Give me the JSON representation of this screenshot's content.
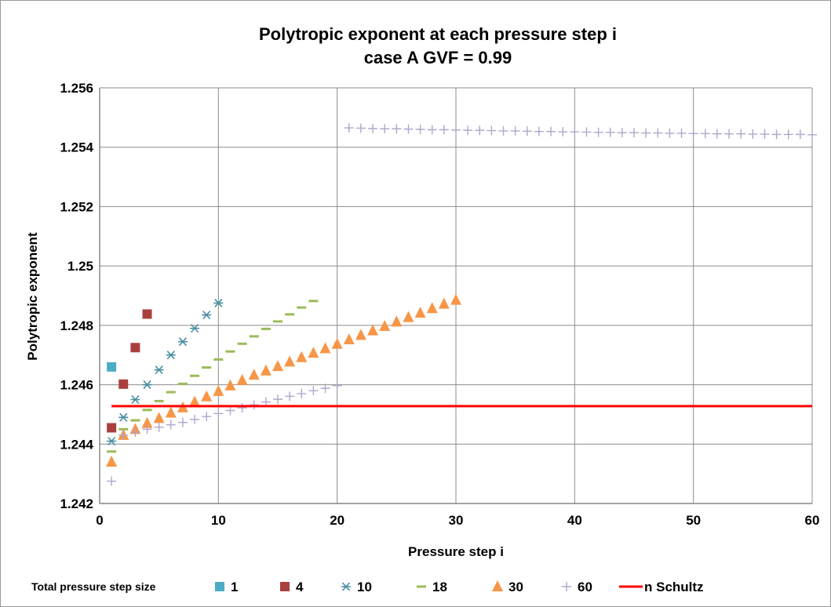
{
  "chart_data": {
    "type": "scatter",
    "title": "Polytropic exponent at each pressure step i",
    "subtitle": "case A GVF = 0.99",
    "xlabel": "Pressure step i",
    "ylabel": "Polytropic exponent",
    "xlim": [
      0,
      60
    ],
    "ylim": [
      1.242,
      1.256
    ],
    "x_ticks": [
      "0",
      "10",
      "20",
      "30",
      "40",
      "50",
      "60"
    ],
    "y_ticks": [
      "1.242",
      "1.244",
      "1.246",
      "1.248",
      "1.25",
      "1.252",
      "1.254",
      "1.256"
    ],
    "grid": true,
    "legend_title": "Total pressure step size",
    "legend_position": "bottom",
    "series": [
      {
        "name": "1",
        "marker": "square",
        "color": "#4bacc6",
        "x": [
          1
        ],
        "y": [
          1.2466
        ]
      },
      {
        "name": "4",
        "marker": "square",
        "color": "#a9403e",
        "x": [
          1,
          2,
          3,
          4
        ],
        "y": [
          1.24455,
          1.24602,
          1.24725,
          1.24838
        ]
      },
      {
        "name": "10",
        "marker": "asterisk",
        "color": "#4a8fa3",
        "x": [
          1,
          2,
          3,
          4,
          5,
          6,
          7,
          8,
          9,
          10
        ],
        "y": [
          1.2441,
          1.2449,
          1.2455,
          1.246,
          1.2465,
          1.247,
          1.24745,
          1.2479,
          1.24835,
          1.24875
        ]
      },
      {
        "name": "18",
        "marker": "dash",
        "color": "#9bbb59",
        "x": [
          1,
          2,
          3,
          4,
          5,
          6,
          7,
          8,
          9,
          10,
          11,
          12,
          13,
          14,
          15,
          16,
          17,
          18
        ],
        "y": [
          1.24375,
          1.2445,
          1.2448,
          1.24515,
          1.24545,
          1.24575,
          1.24603,
          1.2463,
          1.24658,
          1.24685,
          1.24712,
          1.24738,
          1.24763,
          1.24788,
          1.24813,
          1.24837,
          1.2486,
          1.24882
        ]
      },
      {
        "name": "30",
        "marker": "triangle",
        "color": "#f79646",
        "x": [
          1,
          2,
          3,
          4,
          5,
          6,
          7,
          8,
          9,
          10,
          11,
          12,
          13,
          14,
          15,
          16,
          17,
          18,
          19,
          20,
          21,
          22,
          23,
          24,
          25,
          26,
          27,
          28,
          29,
          30
        ],
        "y": [
          1.2434,
          1.2443,
          1.2445,
          1.2447,
          1.24487,
          1.24505,
          1.24523,
          1.24542,
          1.2456,
          1.24578,
          1.24597,
          1.24615,
          1.24633,
          1.24647,
          1.24662,
          1.24677,
          1.24692,
          1.24707,
          1.24722,
          1.24737,
          1.24752,
          1.24767,
          1.24782,
          1.24797,
          1.24812,
          1.24827,
          1.24842,
          1.24857,
          1.24872,
          1.24885
        ]
      },
      {
        "name": "60",
        "marker": "plus",
        "color": "#b0a6cc",
        "x": [
          1,
          2,
          3,
          4,
          5,
          6,
          7,
          8,
          9,
          10,
          11,
          12,
          13,
          14,
          15,
          16,
          17,
          18,
          19,
          20,
          21,
          22,
          23,
          24,
          25,
          26,
          27,
          28,
          29,
          30,
          31,
          32,
          33,
          34,
          35,
          36,
          37,
          38,
          39,
          40,
          41,
          42,
          43,
          44,
          45,
          46,
          47,
          48,
          49,
          50,
          51,
          52,
          53,
          54,
          55,
          56,
          57,
          58,
          59,
          60
        ],
        "y": [
          1.24275,
          1.2443,
          1.2444,
          1.2445,
          1.24457,
          1.24465,
          1.24473,
          1.24483,
          1.24493,
          1.24503,
          1.24513,
          1.24522,
          1.24532,
          1.24542,
          1.24551,
          1.24561,
          1.2457,
          1.2458,
          1.24588,
          1.24597,
          1.25465,
          1.25464,
          1.25463,
          1.25462,
          1.25462,
          1.25461,
          1.2546,
          1.25459,
          1.25459,
          1.25458,
          1.25457,
          1.25457,
          1.25456,
          1.25455,
          1.25455,
          1.25454,
          1.25453,
          1.25453,
          1.25452,
          1.25452,
          1.25451,
          1.2545,
          1.2545,
          1.25449,
          1.25449,
          1.25448,
          1.25448,
          1.25447,
          1.25447,
          1.25446,
          1.25446,
          1.25445,
          1.25445,
          1.25445,
          1.25444,
          1.25444,
          1.25443,
          1.25443,
          1.25443,
          1.25442
        ]
      },
      {
        "name": "n Schultz",
        "marker": "line",
        "color": "#ff0000",
        "x": [
          1,
          60
        ],
        "y": [
          1.24528,
          1.24528
        ]
      }
    ]
  }
}
